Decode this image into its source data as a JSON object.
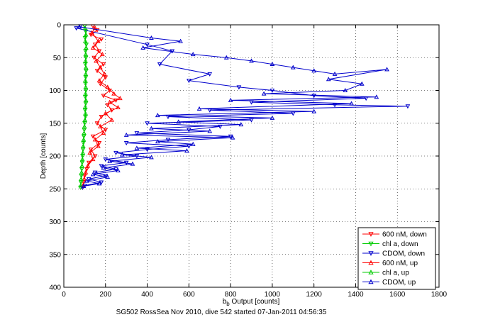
{
  "chart_data": {
    "type": "scatter",
    "title": "",
    "xlabel_main": "b",
    "xlabel_sub": "b",
    "xlabel_rest": " Output [counts]",
    "ylabel": "Depth [counts]",
    "caption": "SG502 RossSea Nov 2010, dive 542 started 07-Jan-2011 04:56:35",
    "xlim": [
      0,
      1800
    ],
    "ylim": [
      0,
      400
    ],
    "y_reversed": true,
    "grid": true,
    "legend_position": "bottom-right",
    "x_ticks": [
      0,
      200,
      400,
      600,
      800,
      1000,
      1200,
      1400,
      1600,
      1800
    ],
    "y_ticks": [
      0,
      50,
      100,
      150,
      200,
      250,
      300,
      350,
      400
    ],
    "x_tick_labels": [
      "0",
      "200",
      "400",
      "600",
      "800",
      "1000",
      "1200",
      "1400",
      "1600",
      "1800"
    ],
    "y_tick_labels": [
      "0",
      "50",
      "100",
      "150",
      "200",
      "250",
      "300",
      "350",
      "400"
    ],
    "series": [
      {
        "name": "600 nM, down",
        "color": "#ff0000",
        "marker": "triangle-down",
        "points": [
          [
            140,
            2
          ],
          [
            160,
            8
          ],
          [
            130,
            15
          ],
          [
            180,
            22
          ],
          [
            150,
            30
          ],
          [
            170,
            40
          ],
          [
            145,
            50
          ],
          [
            190,
            60
          ],
          [
            160,
            70
          ],
          [
            200,
            80
          ],
          [
            175,
            90
          ],
          [
            220,
            100
          ],
          [
            190,
            108
          ],
          [
            250,
            115
          ],
          [
            210,
            122
          ],
          [
            230,
            130
          ],
          [
            180,
            140
          ],
          [
            160,
            150
          ],
          [
            200,
            160
          ],
          [
            140,
            170
          ],
          [
            170,
            180
          ],
          [
            130,
            190
          ],
          [
            150,
            200
          ],
          [
            120,
            210
          ],
          [
            110,
            220
          ],
          [
            100,
            230
          ],
          [
            95,
            240
          ],
          [
            90,
            248
          ]
        ]
      },
      {
        "name": "chl a, down",
        "color": "#00cc00",
        "marker": "triangle-down",
        "points": [
          [
            100,
            2
          ],
          [
            105,
            10
          ],
          [
            102,
            20
          ],
          [
            108,
            30
          ],
          [
            104,
            40
          ],
          [
            106,
            50
          ],
          [
            103,
            60
          ],
          [
            107,
            70
          ],
          [
            105,
            80
          ],
          [
            104,
            90
          ],
          [
            106,
            100
          ],
          [
            103,
            110
          ],
          [
            105,
            120
          ],
          [
            102,
            130
          ],
          [
            104,
            140
          ],
          [
            100,
            150
          ],
          [
            98,
            160
          ],
          [
            96,
            170
          ],
          [
            94,
            180
          ],
          [
            92,
            190
          ],
          [
            90,
            200
          ],
          [
            88,
            210
          ],
          [
            86,
            220
          ],
          [
            84,
            230
          ],
          [
            82,
            240
          ],
          [
            80,
            248
          ]
        ]
      },
      {
        "name": "CDOM, down",
        "color": "#0000cc",
        "marker": "triangle-down",
        "points": [
          [
            80,
            2
          ],
          [
            60,
            5
          ],
          [
            400,
            30
          ],
          [
            520,
            40
          ],
          [
            460,
            60
          ],
          [
            700,
            75
          ],
          [
            600,
            85
          ],
          [
            840,
            95
          ],
          [
            1000,
            100
          ],
          [
            1200,
            108
          ],
          [
            1450,
            112
          ],
          [
            900,
            118
          ],
          [
            1300,
            122
          ],
          [
            1650,
            124
          ],
          [
            700,
            130
          ],
          [
            1100,
            135
          ],
          [
            500,
            140
          ],
          [
            900,
            145
          ],
          [
            400,
            150
          ],
          [
            750,
            155
          ],
          [
            600,
            160
          ],
          [
            350,
            165
          ],
          [
            800,
            170
          ],
          [
            500,
            175
          ],
          [
            300,
            180
          ],
          [
            600,
            185
          ],
          [
            400,
            190
          ],
          [
            250,
            195
          ],
          [
            350,
            200
          ],
          [
            200,
            205
          ],
          [
            300,
            210
          ],
          [
            180,
            215
          ],
          [
            250,
            220
          ],
          [
            150,
            225
          ],
          [
            200,
            230
          ],
          [
            120,
            235
          ],
          [
            180,
            240
          ],
          [
            100,
            245
          ],
          [
            90,
            248
          ]
        ]
      },
      {
        "name": "600 nM, up",
        "color": "#ff0000",
        "marker": "triangle-up",
        "points": [
          [
            150,
            5
          ],
          [
            135,
            12
          ],
          [
            165,
            25
          ],
          [
            140,
            35
          ],
          [
            185,
            45
          ],
          [
            155,
            55
          ],
          [
            175,
            65
          ],
          [
            195,
            75
          ],
          [
            170,
            85
          ],
          [
            210,
            95
          ],
          [
            240,
            105
          ],
          [
            270,
            112
          ],
          [
            220,
            118
          ],
          [
            260,
            126
          ],
          [
            200,
            135
          ],
          [
            230,
            145
          ],
          [
            175,
            155
          ],
          [
            190,
            165
          ],
          [
            150,
            175
          ],
          [
            165,
            185
          ],
          [
            125,
            195
          ],
          [
            140,
            205
          ],
          [
            115,
            215
          ],
          [
            105,
            225
          ],
          [
            98,
            235
          ],
          [
            92,
            245
          ]
        ]
      },
      {
        "name": "chl a, up",
        "color": "#00cc00",
        "marker": "triangle-up",
        "points": [
          [
            102,
            5
          ],
          [
            106,
            15
          ],
          [
            103,
            25
          ],
          [
            107,
            35
          ],
          [
            105,
            45
          ],
          [
            104,
            55
          ],
          [
            106,
            65
          ],
          [
            105,
            75
          ],
          [
            103,
            85
          ],
          [
            105,
            95
          ],
          [
            104,
            105
          ],
          [
            106,
            115
          ],
          [
            103,
            125
          ],
          [
            104,
            135
          ],
          [
            101,
            145
          ],
          [
            99,
            155
          ],
          [
            97,
            165
          ],
          [
            95,
            175
          ],
          [
            93,
            185
          ],
          [
            91,
            195
          ],
          [
            89,
            205
          ],
          [
            87,
            215
          ],
          [
            85,
            225
          ],
          [
            83,
            235
          ],
          [
            81,
            245
          ]
        ]
      },
      {
        "name": "CDOM, up",
        "color": "#0000cc",
        "marker": "triangle-up",
        "points": [
          [
            75,
            3
          ],
          [
            420,
            20
          ],
          [
            560,
            25
          ],
          [
            380,
            35
          ],
          [
            620,
            45
          ],
          [
            780,
            50
          ],
          [
            900,
            55
          ],
          [
            1000,
            60
          ],
          [
            1100,
            65
          ],
          [
            1200,
            70
          ],
          [
            1300,
            75
          ],
          [
            1550,
            68
          ],
          [
            1270,
            83
          ],
          [
            1430,
            90
          ],
          [
            1350,
            100
          ],
          [
            960,
            105
          ],
          [
            1500,
            110
          ],
          [
            800,
            115
          ],
          [
            1380,
            120
          ],
          [
            650,
            128
          ],
          [
            1200,
            132
          ],
          [
            450,
            138
          ],
          [
            1000,
            142
          ],
          [
            550,
            148
          ],
          [
            850,
            152
          ],
          [
            420,
            158
          ],
          [
            700,
            162
          ],
          [
            300,
            168
          ],
          [
            810,
            172
          ],
          [
            450,
            178
          ],
          [
            620,
            182
          ],
          [
            350,
            188
          ],
          [
            590,
            192
          ],
          [
            280,
            198
          ],
          [
            420,
            202
          ],
          [
            220,
            208
          ],
          [
            330,
            212
          ],
          [
            190,
            218
          ],
          [
            260,
            222
          ],
          [
            140,
            228
          ],
          [
            210,
            232
          ],
          [
            110,
            238
          ],
          [
            170,
            242
          ],
          [
            95,
            246
          ]
        ]
      }
    ]
  }
}
